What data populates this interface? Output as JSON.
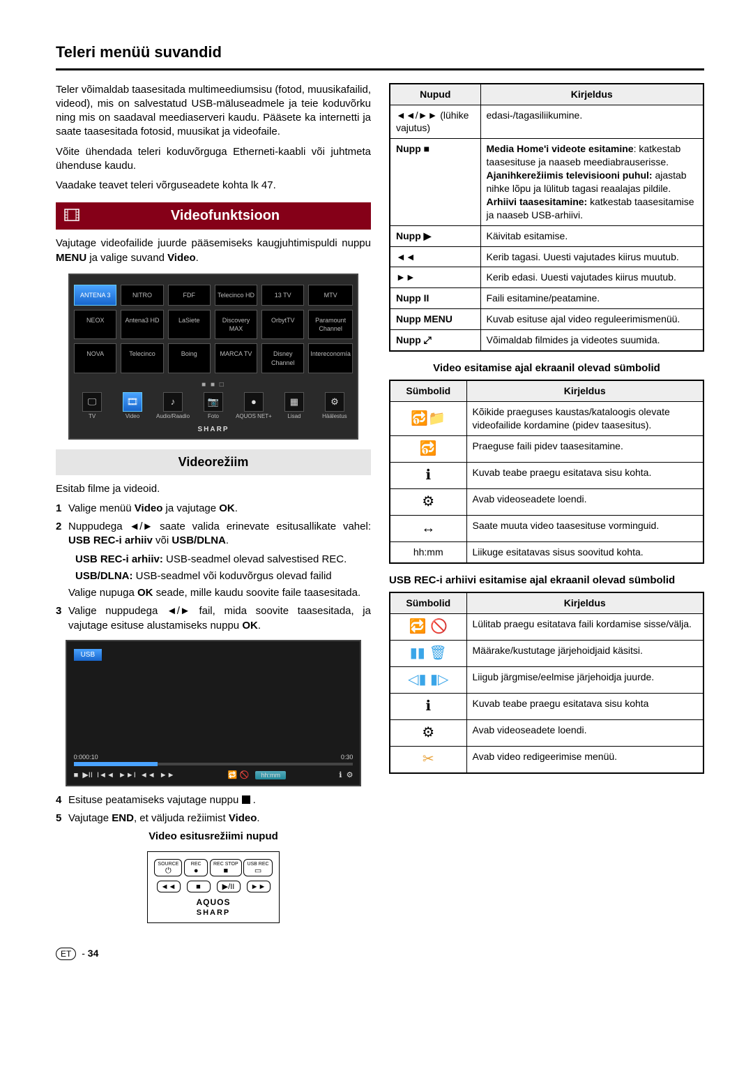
{
  "page": {
    "title": "Teleri menüü suvandid",
    "footer_lang": "ET",
    "footer_page": "34"
  },
  "left": {
    "p1": "Teler võimaldab taasesitada multimeediumsisu (fotod, muusikafailid, videod), mis on salvestatud USB-mäluseadmele ja teie koduvõrku ning mis on saadaval meediaserveri kaudu. Pääsete ka internetti ja saate taasesitada fotosid, muusikat ja videofaile.",
    "p2": "Võite ühendada teleri koduvõrguga Etherneti-kaabli või juhtmeta ühenduse kaudu.",
    "p3": "Vaadake teavet teleri võrguseadete kohta lk 47.",
    "section_video": "Videofunktsioon",
    "p4a": "Vajutage videofailide juurde pääsemiseks kaugjuhtimispuldi nuppu ",
    "p4b": "MENU",
    "p4c": " ja valige suvand ",
    "p4d": "Video",
    "p4e": ".",
    "channels": [
      [
        "ANTENA 3",
        "NITRO",
        "FDF",
        "Telecinco HD",
        "13 TV",
        "MTV"
      ],
      [
        "NEOX",
        "Antena3 HD",
        "LaSiete",
        "Discovery MAX",
        "OrbytTV",
        "Paramount Channel"
      ],
      [
        "NOVA",
        "Telecinco",
        "Boing",
        "MARCA TV",
        "Disney Channel",
        "Intereconomía"
      ]
    ],
    "bottom_menu": [
      "TV",
      "Video",
      "Audio/Raadio",
      "Foto",
      "AQUOS NET+",
      "Lisad",
      "Häälestus"
    ],
    "sharp_small": "SHARP",
    "sub_video": "Videorežiim",
    "p5": "Esitab filme ja videoid.",
    "step1a": "Valige menüü ",
    "step1b": "Video",
    "step1c": " ja vajutage ",
    "step1d": "OK",
    "step1e": ".",
    "step2a": "Nuppudega ◄/► saate valida erinevate esitusallikate vahel: ",
    "step2b": "USB REC-i arhiiv",
    "step2c": " või ",
    "step2d": "USB/DLNA",
    "step2e": ".",
    "step2f1": "USB REC-i arhiiv:",
    "step2f2": " USB-seadmel olevad salvestised REC.",
    "step2g1": "USB/DLNA:",
    "step2g2": " USB-seadmel või koduvõrgus olevad failid",
    "step2h1": "Valige nupuga ",
    "step2h2": "OK",
    "step2h3": " seade, mille kaudu soovite faile taasesitada.",
    "step3a": "Valige nuppudega ◄/► fail, mida soovite taasesitada, ja vajutage esituse alustamiseks nuppu ",
    "step3b": "OK",
    "step3c": ".",
    "usb_label": "USB",
    "tl": {
      "t0": "0:00",
      "t1": "0:10",
      "t2": "0:30"
    },
    "step4a": "Esituse peatamiseks vajutage nuppu ",
    "step4b": " .",
    "step5a": "Vajutage ",
    "step5b": "END",
    "step5c": ", et väljuda režiimist ",
    "step5d": "Video",
    "step5e": ".",
    "centered1": "Video esitusrežiimi nupud",
    "remote": {
      "row1": [
        {
          "lab": "SOURCE",
          "g": "⏻"
        },
        {
          "lab": "REC",
          "g": "●"
        },
        {
          "lab": "REC STOP",
          "g": "■"
        },
        {
          "lab": "USB REC",
          "g": "▭"
        }
      ],
      "row2": [
        {
          "lab": "",
          "g": "◄◄"
        },
        {
          "lab": "",
          "g": "■"
        },
        {
          "lab": "",
          "g": "▶/II"
        },
        {
          "lab": "",
          "g": "►►"
        }
      ],
      "brand1": "AQUOS",
      "brand2": "SHARP"
    }
  },
  "right": {
    "table1": {
      "h1": "Nupud",
      "h2": "Kirjeldus",
      "rows": [
        {
          "c1_html": "◄◄/►► (lühike vajutus)",
          "c2": "edasi-/tagasiliikumine."
        },
        {
          "c1_html": "Nupp ■",
          "c2_html": "<b>Media Home'i videote esitamine</b>: katkestab taasesituse ja naaseb meediabrauserisse.<br><b>Ajanihkerežiimis televisiooni puhul:</b> ajastab nihke lõpu ja lülitub tagasi reaalajas pildile.<br><b>Arhiivi taasesitamine:</b> katkestab taasesitamise ja naaseb USB-arhiivi."
        },
        {
          "c1_html": "Nupp ▶",
          "c2": "Käivitab esitamise."
        },
        {
          "c1_html": "◄◄",
          "c2": "Kerib tagasi. Uuesti vajutades kiirus muutub."
        },
        {
          "c1_html": "►►",
          "c2": "Kerib edasi. Uuesti vajutades kiirus muutub."
        },
        {
          "c1_html": "Nupp <b>II</b>",
          "c2": "Faili esitamine/peatamine."
        },
        {
          "c1_html": "Nupp MENU",
          "c2": "Kuvab esituse ajal video reguleerimismenüü."
        },
        {
          "c1_html": "Nupp ⤢",
          "c2": "Võimaldab filmides ja videotes suumida."
        }
      ]
    },
    "title2": "Video esitamise ajal ekraanil olevad sümbolid",
    "table2": {
      "h1": "Sümbolid",
      "h2": "Kirjeldus",
      "rows": [
        {
          "sym": "🔂📁",
          "c2": "Kõikide praeguses kaustas/kataloogis olevate videofailide kordamine (pidev taasesitus)."
        },
        {
          "sym": "🔂",
          "c2": "Praeguse faili pidev taasesitamine."
        },
        {
          "sym": "ℹ",
          "c2": "Kuvab teabe praegu esitatava sisu kohta."
        },
        {
          "sym": "⚙",
          "c2": "Avab videoseadete loendi."
        },
        {
          "sym": "↔",
          "c2": "Saate muuta video taasesituse vorminguid."
        },
        {
          "sym": "hh:mm",
          "txt": true,
          "c2": "Liikuge esitatavas sisus soovitud kohta."
        }
      ]
    },
    "title3": "USB REC-i arhiivi esitamise ajal ekraanil olevad sümbolid",
    "table3": {
      "h1": "Sümbolid",
      "h2": "Kirjeldus",
      "rows": [
        {
          "sym": "🔁 🚫",
          "c2": "Lülitab praegu esitatava faili kordamise sisse/välja."
        },
        {
          "sym": "▮▮ 🗑",
          "col": "#3aa5e8",
          "c2": "Määrake/kustutage järjehoidjaid käsitsi."
        },
        {
          "sym": "◁▮ ▮▷",
          "col": "#3aa5e8",
          "c2": "Liigub järgmise/eelmise järjehoidja juurde."
        },
        {
          "sym": "ℹ",
          "c2": "Kuvab teabe praegu esitatava sisu kohta"
        },
        {
          "sym": "⚙",
          "c2": "Avab videoseadete loendi."
        },
        {
          "sym": "✂",
          "col": "#e8a23a",
          "c2": "Avab video redigeerimise menüü."
        }
      ]
    }
  }
}
